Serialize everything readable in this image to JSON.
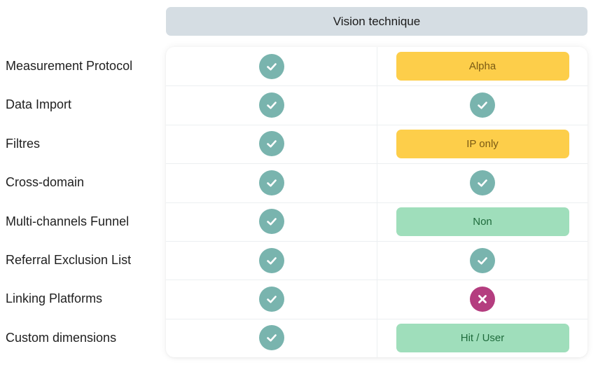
{
  "header": {
    "title": "Vision technique"
  },
  "colors": {
    "header_bg": "#d5dde3",
    "check": "#79b4ae",
    "cross": "#b43d7f",
    "badge_yellow": "#fdce4a",
    "badge_green": "#9fdebb"
  },
  "rows": [
    {
      "label": "Measurement Protocol",
      "col1": {
        "type": "check",
        "icon": "check-icon"
      },
      "col2": {
        "type": "badge",
        "style": "yellow",
        "text": "Alpha"
      }
    },
    {
      "label": "Data Import",
      "col1": {
        "type": "check",
        "icon": "check-icon"
      },
      "col2": {
        "type": "check",
        "icon": "check-icon"
      }
    },
    {
      "label": "Filtres",
      "col1": {
        "type": "check",
        "icon": "check-icon"
      },
      "col2": {
        "type": "badge",
        "style": "yellow",
        "text": "IP only"
      }
    },
    {
      "label": "Cross-domain",
      "col1": {
        "type": "check",
        "icon": "check-icon"
      },
      "col2": {
        "type": "check",
        "icon": "check-icon"
      }
    },
    {
      "label": "Multi-channels Funnel",
      "col1": {
        "type": "check",
        "icon": "check-icon"
      },
      "col2": {
        "type": "badge",
        "style": "green",
        "text": "Non"
      }
    },
    {
      "label": "Referral Exclusion List",
      "col1": {
        "type": "check",
        "icon": "check-icon"
      },
      "col2": {
        "type": "check",
        "icon": "check-icon"
      }
    },
    {
      "label": "Linking Platforms",
      "col1": {
        "type": "check",
        "icon": "check-icon"
      },
      "col2": {
        "type": "cross",
        "icon": "cross-icon"
      }
    },
    {
      "label": "Custom dimensions",
      "col1": {
        "type": "check",
        "icon": "check-icon"
      },
      "col2": {
        "type": "badge",
        "style": "green",
        "text": "Hit / User"
      }
    }
  ]
}
